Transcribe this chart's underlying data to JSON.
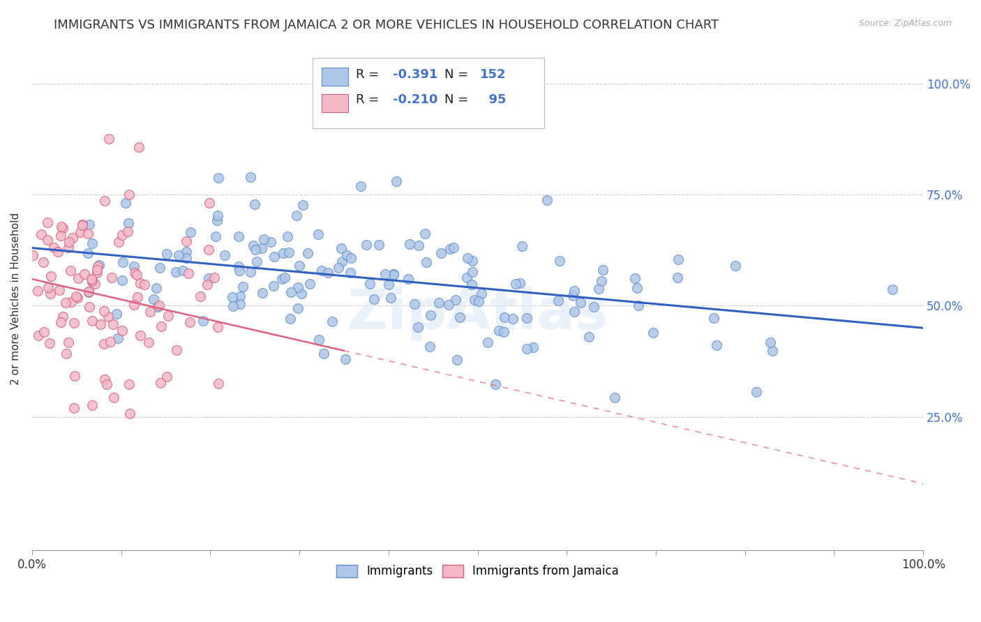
{
  "title": "IMMIGRANTS VS IMMIGRANTS FROM JAMAICA 2 OR MORE VEHICLES IN HOUSEHOLD CORRELATION CHART",
  "source": "Source: ZipAtlas.com",
  "ylabel": "2 or more Vehicles in Household",
  "xlim": [
    0.0,
    1.0
  ],
  "ylim": [
    -0.05,
    1.08
  ],
  "y_tick_labels": [
    "25.0%",
    "50.0%",
    "75.0%",
    "100.0%"
  ],
  "y_tick_values": [
    0.25,
    0.5,
    0.75,
    1.0
  ],
  "background_color": "#ffffff",
  "watermark": "ZipAtlas",
  "blue_scatter_color": "#aec6e8",
  "pink_scatter_color": "#f4b8c8",
  "blue_line_color": "#3060c0",
  "pink_line_color": "#e06080",
  "blue_dot_edge": "#6090c8",
  "pink_dot_edge": "#d06080",
  "title_fontsize": 13,
  "axis_label_fontsize": 11,
  "tick_label_fontsize": 12,
  "legend_fontsize": 13,
  "seed": 42,
  "n_blue": 152,
  "n_pink": 95,
  "blue_R": -0.391,
  "pink_R": -0.21,
  "blue_intercept": 0.63,
  "blue_slope": -0.18,
  "pink_intercept": 0.56,
  "pink_slope": -0.46
}
